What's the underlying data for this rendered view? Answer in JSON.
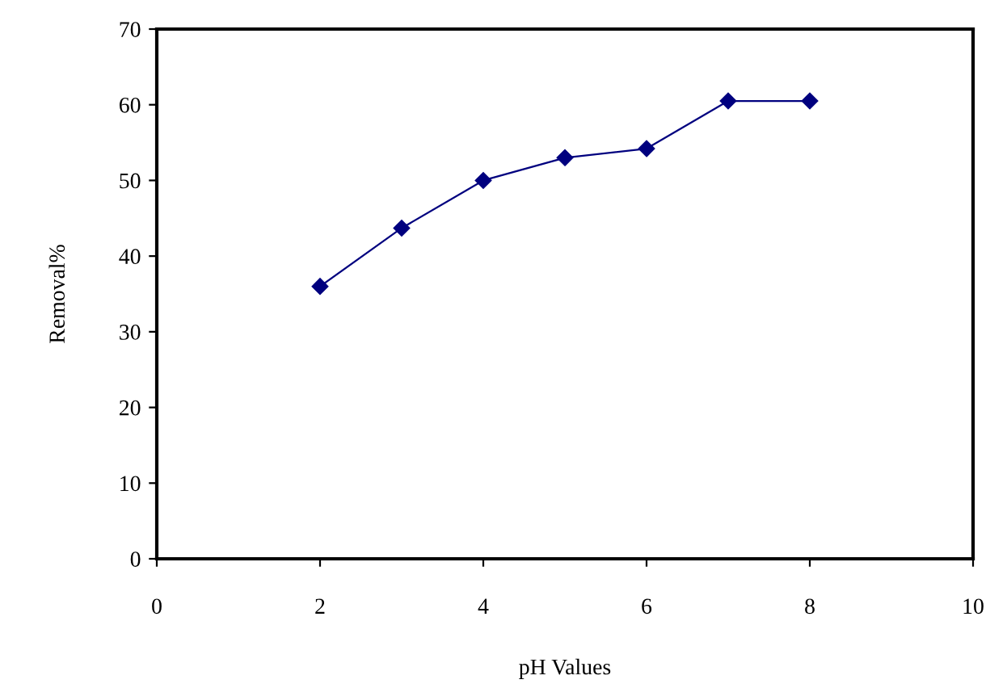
{
  "chart_data": {
    "type": "line",
    "xlabel": "pH Values",
    "ylabel": "Removal%",
    "x": [
      2,
      3,
      4,
      5,
      6,
      7,
      8
    ],
    "series": [
      {
        "color": "#00007f",
        "values": [
          36,
          43.7,
          50,
          53,
          54.2,
          60.5,
          60.5
        ]
      }
    ],
    "xlim": [
      0,
      10
    ],
    "xticks": [
      0,
      2,
      4,
      6,
      8,
      10
    ],
    "ylim": [
      0,
      70
    ],
    "yticks": [
      0,
      10,
      20,
      30,
      40,
      50,
      60,
      70
    ],
    "grid": false,
    "legend": false,
    "marker": "diamond",
    "line_style": "solid"
  }
}
